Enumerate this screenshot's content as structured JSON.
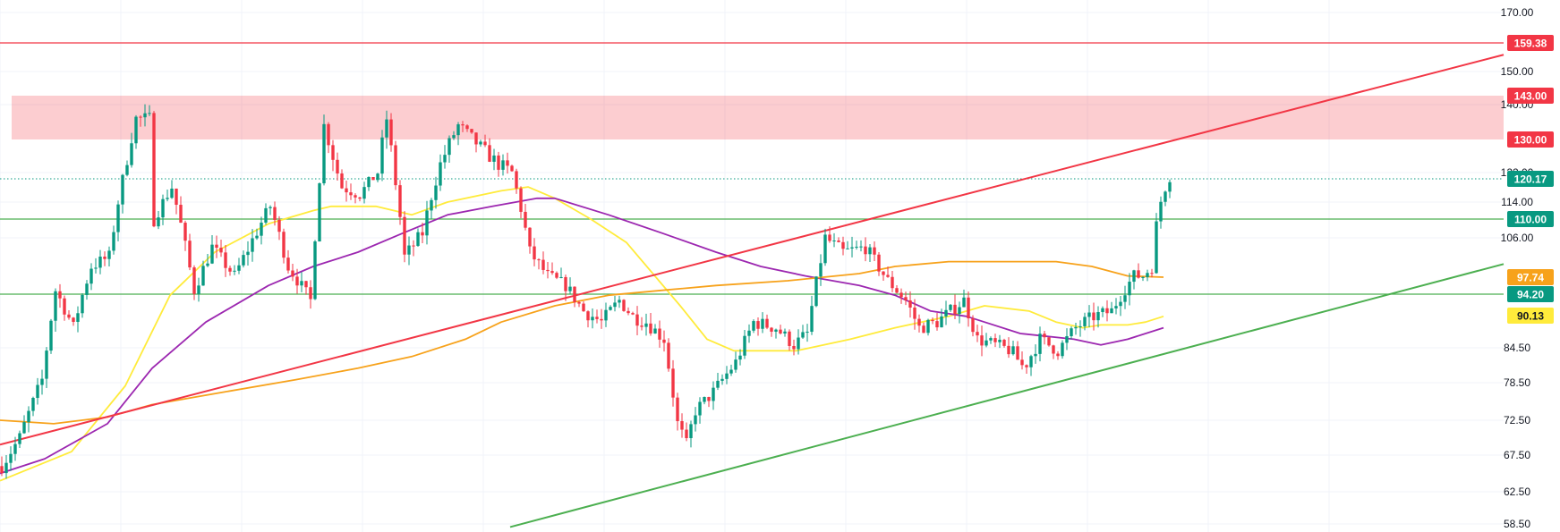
{
  "chart_data": {
    "type": "candlestick",
    "y_ticks": [
      "170.00",
      "150.00",
      "140.00",
      "122.00",
      "114.00",
      "106.00",
      "84.50",
      "78.50",
      "72.50",
      "67.50",
      "62.50",
      "58.50"
    ],
    "price_labels": [
      {
        "text": "159.38",
        "value": 159.38,
        "color": "#f23645"
      },
      {
        "text": "143.00",
        "value": 143.0,
        "color": "#f23645"
      },
      {
        "text": "130.00",
        "value": 130.0,
        "color": "#f23645"
      },
      {
        "text": "120.17",
        "value": 120.17,
        "color": "#089981"
      },
      {
        "text": "110.00",
        "value": 110.0,
        "color": "#089981"
      },
      {
        "text": "97.74",
        "value": 97.74,
        "color": "#f7a21b"
      },
      {
        "text": "94.20",
        "value": 94.2,
        "color": "#089981"
      },
      {
        "text": "90.13",
        "value": 90.13,
        "color": "#ffeb3b"
      }
    ],
    "horizontal_lines": [
      {
        "value": 159.38,
        "color": "#f23645"
      },
      {
        "value": 110.0,
        "color": "#4caf50"
      },
      {
        "value": 94.2,
        "color": "#4caf50"
      },
      {
        "value": 120.17,
        "color": "#089981",
        "dotted": true
      }
    ],
    "resistance_zone": {
      "from": 130.0,
      "to": 143.0,
      "color": "#f23645"
    },
    "trendlines": [
      {
        "color": "#f23645",
        "points": [
          [
            0,
            69.0
          ],
          [
            1680,
            155.5
          ]
        ]
      },
      {
        "color": "#4caf50",
        "points": [
          [
            570,
            58.2
          ],
          [
            1680,
            100.5
          ]
        ]
      }
    ],
    "candle_keypoints": [
      [
        0,
        66
      ],
      [
        20,
        70
      ],
      [
        45,
        79
      ],
      [
        60,
        95
      ],
      [
        80,
        88
      ],
      [
        100,
        100
      ],
      [
        120,
        102
      ],
      [
        135,
        120
      ],
      [
        150,
        136
      ],
      [
        165,
        136
      ],
      [
        170,
        110
      ],
      [
        190,
        118
      ],
      [
        215,
        95
      ],
      [
        235,
        104
      ],
      [
        260,
        98
      ],
      [
        300,
        113
      ],
      [
        320,
        100
      ],
      [
        345,
        93
      ],
      [
        360,
        134
      ],
      [
        380,
        118
      ],
      [
        400,
        116
      ],
      [
        420,
        122
      ],
      [
        430,
        136
      ],
      [
        450,
        102
      ],
      [
        470,
        107
      ],
      [
        490,
        124
      ],
      [
        510,
        134
      ],
      [
        535,
        128
      ],
      [
        555,
        124
      ],
      [
        570,
        122
      ],
      [
        590,
        103
      ],
      [
        610,
        98
      ],
      [
        630,
        96
      ],
      [
        650,
        91
      ],
      [
        670,
        89
      ],
      [
        690,
        93
      ],
      [
        705,
        90
      ],
      [
        720,
        89
      ],
      [
        740,
        86
      ],
      [
        755,
        72
      ],
      [
        765,
        69
      ],
      [
        775,
        74
      ],
      [
        795,
        77
      ],
      [
        820,
        82
      ],
      [
        840,
        89
      ],
      [
        865,
        88
      ],
      [
        885,
        85
      ],
      [
        900,
        87
      ],
      [
        920,
        106
      ],
      [
        940,
        103
      ],
      [
        965,
        104
      ],
      [
        990,
        97
      ],
      [
        1010,
        93
      ],
      [
        1025,
        88
      ],
      [
        1045,
        89
      ],
      [
        1060,
        91
      ],
      [
        1075,
        93
      ],
      [
        1090,
        86
      ],
      [
        1110,
        85
      ],
      [
        1128,
        84
      ],
      [
        1142,
        81
      ],
      [
        1160,
        86
      ],
      [
        1180,
        84
      ],
      [
        1200,
        88
      ],
      [
        1220,
        90
      ],
      [
        1240,
        91
      ],
      [
        1250,
        94
      ],
      [
        1265,
        98
      ],
      [
        1275,
        98
      ],
      [
        1285,
        100
      ],
      [
        1292,
        112
      ],
      [
        1300,
        118
      ],
      [
        1307,
        122
      ]
    ],
    "ma_series": [
      {
        "color": "#ffeb3b",
        "points": [
          [
            0,
            64
          ],
          [
            80,
            68
          ],
          [
            140,
            78
          ],
          [
            190,
            94
          ],
          [
            240,
            103
          ],
          [
            300,
            109
          ],
          [
            350,
            112
          ],
          [
            370,
            113
          ],
          [
            420,
            113
          ],
          [
            460,
            111
          ],
          [
            500,
            114
          ],
          [
            560,
            117
          ],
          [
            590,
            118
          ],
          [
            620,
            115
          ],
          [
            660,
            110
          ],
          [
            700,
            105
          ],
          [
            760,
            92
          ],
          [
            790,
            86
          ],
          [
            820,
            84
          ],
          [
            850,
            84
          ],
          [
            890,
            84
          ],
          [
            950,
            86
          ],
          [
            1000,
            88
          ],
          [
            1060,
            90
          ],
          [
            1100,
            92
          ],
          [
            1150,
            91
          ],
          [
            1180,
            89
          ],
          [
            1210,
            88
          ],
          [
            1230,
            88.5
          ],
          [
            1260,
            88.5
          ],
          [
            1280,
            89
          ],
          [
            1300,
            90
          ]
        ]
      },
      {
        "color": "#9c27b0",
        "points": [
          [
            0,
            65
          ],
          [
            50,
            67
          ],
          [
            120,
            72
          ],
          [
            170,
            81
          ],
          [
            230,
            89
          ],
          [
            300,
            96
          ],
          [
            350,
            100
          ],
          [
            400,
            103
          ],
          [
            450,
            107
          ],
          [
            500,
            111
          ],
          [
            550,
            113
          ],
          [
            600,
            115
          ],
          [
            620,
            115
          ],
          [
            680,
            111
          ],
          [
            740,
            107
          ],
          [
            800,
            103
          ],
          [
            850,
            100
          ],
          [
            900,
            98
          ],
          [
            960,
            96
          ],
          [
            1000,
            94
          ],
          [
            1040,
            91
          ],
          [
            1080,
            90
          ],
          [
            1100,
            89
          ],
          [
            1140,
            87
          ],
          [
            1200,
            86
          ],
          [
            1230,
            85
          ],
          [
            1260,
            86
          ],
          [
            1300,
            88
          ]
        ]
      },
      {
        "color": "#f7a21b",
        "points": [
          [
            0,
            72.5
          ],
          [
            60,
            72
          ],
          [
            120,
            73
          ],
          [
            170,
            75
          ],
          [
            250,
            77
          ],
          [
            330,
            79
          ],
          [
            400,
            81
          ],
          [
            460,
            83
          ],
          [
            520,
            86
          ],
          [
            560,
            89
          ],
          [
            620,
            92
          ],
          [
            680,
            94
          ],
          [
            740,
            95
          ],
          [
            800,
            96
          ],
          [
            880,
            97
          ],
          [
            960,
            98.5
          ],
          [
            1000,
            100
          ],
          [
            1060,
            101
          ],
          [
            1120,
            101
          ],
          [
            1180,
            101
          ],
          [
            1220,
            100
          ],
          [
            1260,
            98
          ],
          [
            1300,
            97.74
          ]
        ]
      }
    ]
  }
}
